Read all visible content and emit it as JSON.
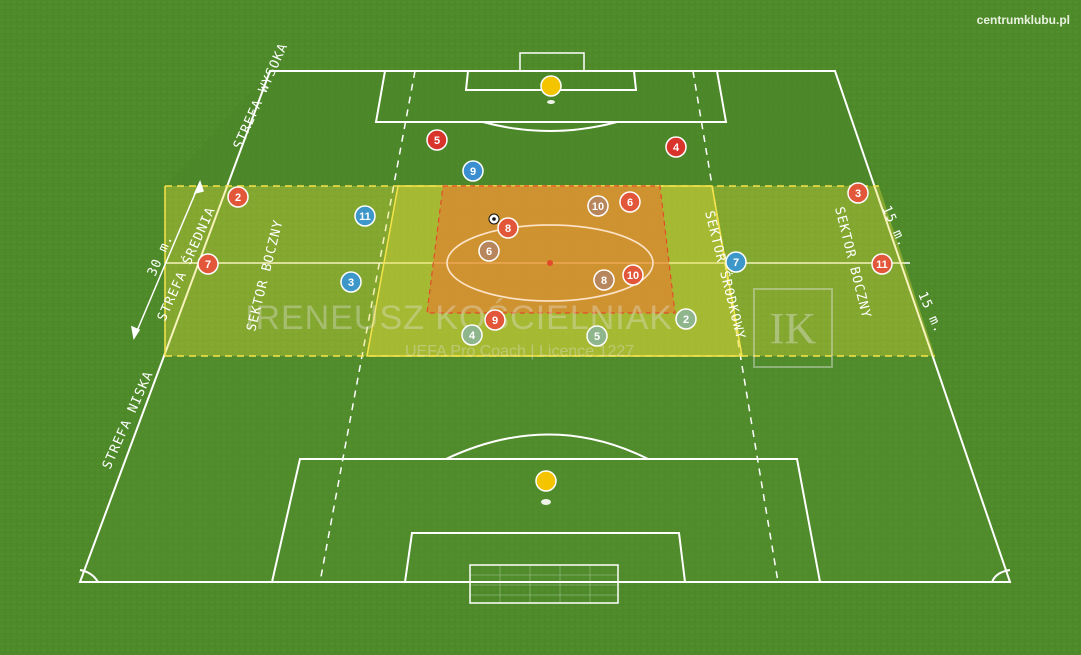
{
  "site": "centrumklubu.pl",
  "zones": {
    "high": "STREFA WYSOKA",
    "middle": "STREFA ŚREDNIA",
    "low": "STREFA NISKA"
  },
  "sectors": {
    "left": "SEKTOR BOCZNY",
    "center": "SEKTOR ŚRODKOWY",
    "right": "SEKTOR BOCZNY"
  },
  "dimensions": {
    "depth": "30 m.",
    "right_upper": "15 m.",
    "right_lower": "15 m."
  },
  "watermark": {
    "name": "IRENEUSZ KOŚCIELNIAK",
    "subtitle": "UEFA Pro Coach  |  Licence 1227",
    "logo": "IK"
  },
  "colors": {
    "team_red": "#e2573a",
    "team_blue": "#3d97c9",
    "faded_red": "#b8865d",
    "faded_blue": "#8eb58c",
    "keeper": "#f5c400",
    "zone_yellow": "#e9de3a",
    "zone_orange": "#ea7a2f"
  },
  "players": {
    "red": [
      "5",
      "4",
      "2",
      "3",
      "7",
      "11",
      "8",
      "6",
      "10",
      "9"
    ],
    "blue": [
      "9",
      "11",
      "3",
      "7",
      "2",
      "5",
      "4"
    ],
    "faded": [
      "10",
      "6",
      "8"
    ]
  }
}
